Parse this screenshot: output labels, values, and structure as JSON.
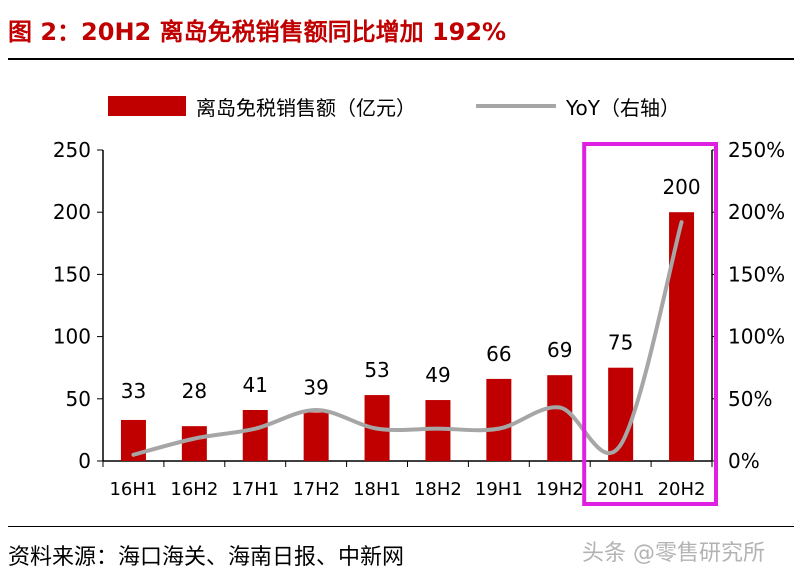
{
  "title": "图 2：20H2 离岛免税销售额同比增加 192%",
  "source": "资料来源：海口海关、海南日报、中新网",
  "watermark": "头条 @零售研究所",
  "colors": {
    "bar": "#c00000",
    "line": "#a6a6a6",
    "highlight": "#e020e0",
    "title": "#c00000"
  },
  "chart_data": {
    "type": "bar",
    "title": "",
    "categories": [
      "16H1",
      "16H2",
      "17H1",
      "17H2",
      "18H1",
      "18H2",
      "19H1",
      "19H2",
      "20H1",
      "20H2"
    ],
    "series": [
      {
        "name": "离岛免税销售额（亿元）",
        "type": "bar",
        "axis": "left",
        "values": [
          33,
          28,
          41,
          39,
          53,
          49,
          66,
          69,
          75,
          200
        ]
      },
      {
        "name": "YoY（右轴）",
        "type": "line",
        "axis": "right",
        "smooth": true,
        "values": [
          5,
          18,
          26,
          41,
          26,
          26,
          26,
          43,
          13,
          192
        ]
      }
    ],
    "y_left": {
      "min": 0,
      "max": 250,
      "ticks": [
        "0",
        "50",
        "100",
        "150",
        "200",
        "250"
      ]
    },
    "y_right": {
      "min": 0,
      "max": 250,
      "ticks": [
        "0%",
        "50%",
        "100%",
        "150%",
        "200%",
        "250%"
      ]
    },
    "data_labels": [
      "33",
      "28",
      "41",
      "39",
      "53",
      "49",
      "66",
      "69",
      "75",
      "200"
    ],
    "legend": {
      "position": "top",
      "bar_label": "离岛免税销售额（亿元）",
      "line_label": "YoY（右轴）"
    },
    "highlight_categories": [
      "20H1",
      "20H2"
    ],
    "grid": false
  }
}
